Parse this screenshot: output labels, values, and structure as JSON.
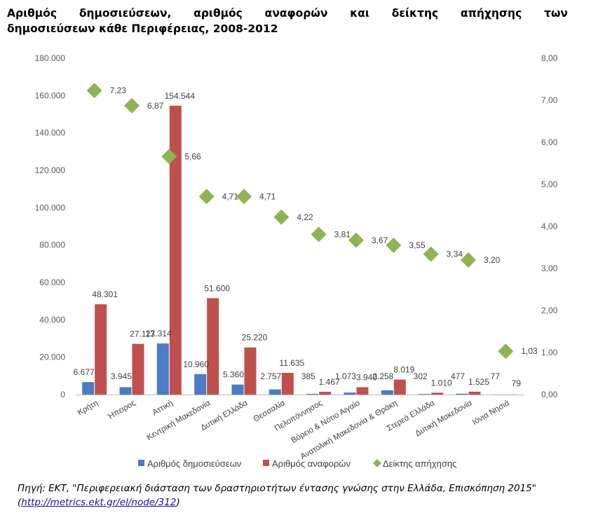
{
  "title": {
    "line1_words": [
      "Αριθμός",
      "δημοσιεύσεων,",
      "αριθμός",
      "αναφορών",
      "και",
      "δείκτης",
      "απήχησης",
      "των"
    ],
    "line2": "δημοσιεύσεων κάθε Περιφέρειας, 2008-2012"
  },
  "chart_data": {
    "type": "bar",
    "title": "",
    "categories": [
      "Κρήτη",
      "Ήπειρος",
      "Αττική",
      "Κεντρική Μακεδονία",
      "Δυτική Ελλάδα",
      "Θεσσαλία",
      "Πελοπόννησος",
      "Βόρειο & Νότιο Αιγαίο",
      "Ανατολική Μακεδονία & Θράκη",
      "Στερεά Ελλάδα",
      "Δυτική Μακεδονία",
      "Ιόνια Νησιά"
    ],
    "series": [
      {
        "name": "Αριθμός δημοσιεύσεων",
        "type": "bar",
        "axis": "left",
        "color": "#4a7cc7",
        "values": [
          6677,
          3945,
          27314,
          10960,
          5360,
          2757,
          385,
          1073,
          2258,
          302,
          477,
          77
        ],
        "labels": [
          "6.677",
          "3.945",
          "27.314",
          "10.960",
          "5.360",
          "2.757",
          "385",
          "1.073",
          "2.258",
          "302",
          "477",
          "77"
        ]
      },
      {
        "name": "Αριθμός αναφορών",
        "type": "bar",
        "axis": "left",
        "color": "#c0504d",
        "values": [
          48301,
          27113,
          154544,
          51600,
          25220,
          11635,
          1467,
          3940,
          8019,
          1010,
          1525,
          79
        ],
        "labels": [
          "48.301",
          "27.113",
          "154.544",
          "51.600",
          "25.220",
          "11.635",
          "1.467",
          "3.940",
          "8.019",
          "1.010",
          "1.525",
          "79"
        ]
      },
      {
        "name": "Δείκτης απήχησης",
        "type": "scatter",
        "marker": "diamond",
        "axis": "right",
        "color": "#8fb453",
        "values": [
          7.23,
          6.87,
          5.66,
          4.71,
          4.71,
          4.22,
          3.81,
          3.67,
          3.55,
          3.34,
          3.2,
          1.03
        ],
        "labels": [
          "7,23",
          "6,87",
          "5,66",
          "4,71",
          "4,71",
          "4,22",
          "3,81",
          "3,67",
          "3,55",
          "3,34",
          "3,20",
          "1,03"
        ]
      }
    ],
    "ylim_left": [
      0,
      180000
    ],
    "ylim_right": [
      0,
      8
    ],
    "yticks_left": [
      "0",
      "20.000",
      "40.000",
      "60.000",
      "80.000",
      "100.000",
      "120.000",
      "140.000",
      "160.000",
      "180.000"
    ],
    "yticks_right": [
      "0,00",
      "1,00",
      "2,00",
      "3,00",
      "4,00",
      "5,00",
      "6,00",
      "7,00",
      "8,00"
    ],
    "grid": false,
    "legend": "bottom"
  },
  "caption": {
    "text": "Πηγή: ΕΚΤ, \"Περιφερειακή διάσταση των δραστηριοτήτων έντασης γνώσης στην Ελλάδα, Επισκόπηση 2015\"",
    "open_paren": "(",
    "link": "http://metrics.ekt.gr/el/node/312",
    "close_paren": ")"
  }
}
